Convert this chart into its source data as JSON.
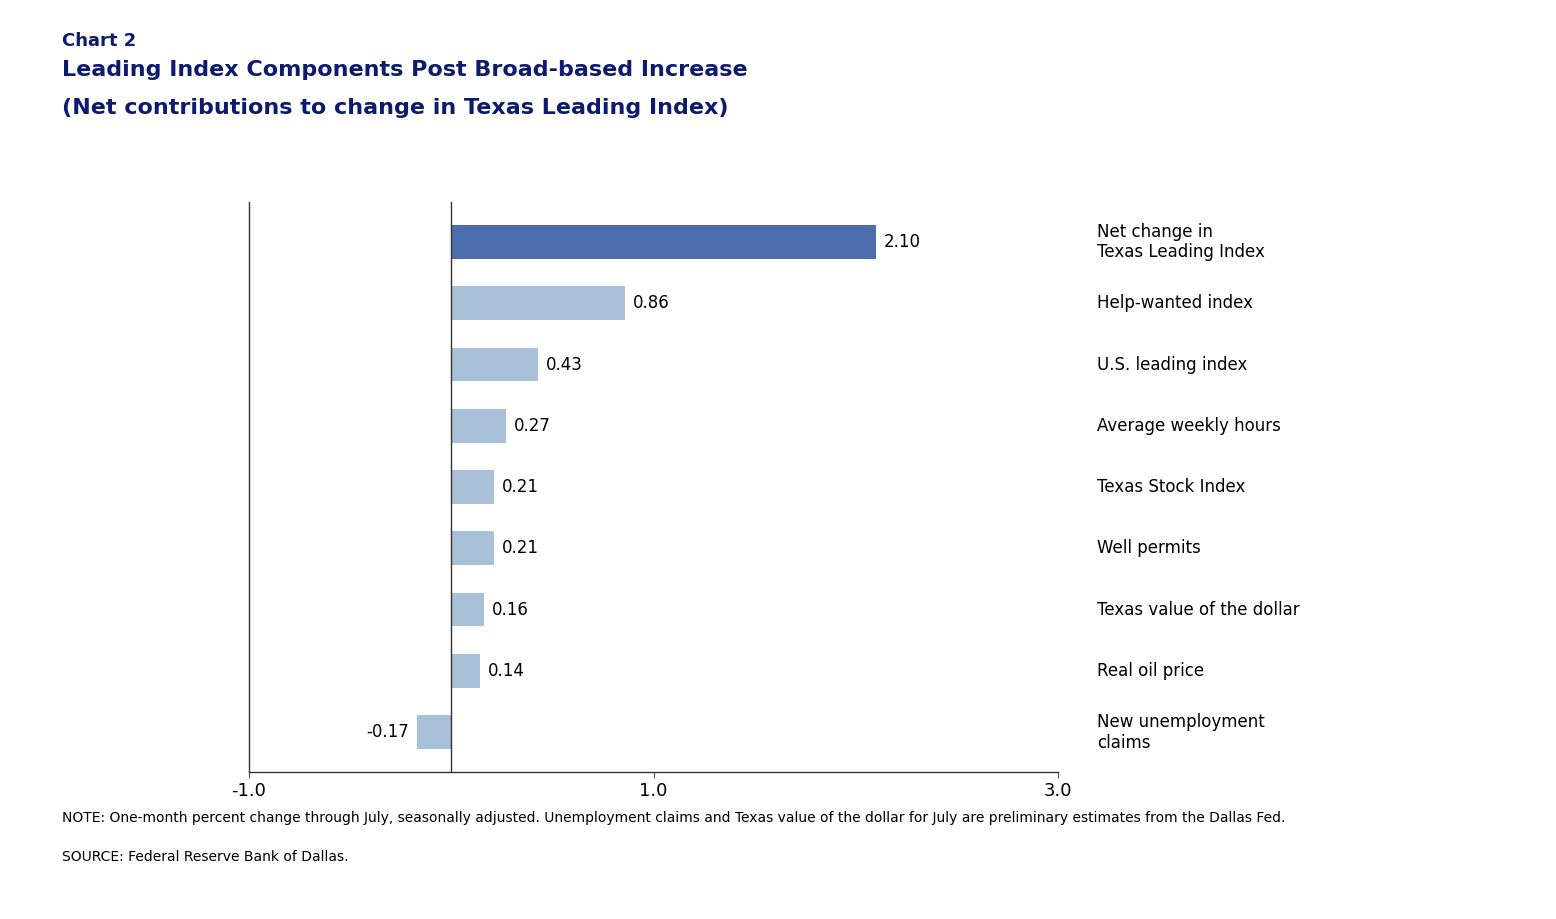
{
  "title_line1": "Chart 2",
  "title_line2": "Leading Index Components Post Broad-based Increase",
  "title_line3": "(Net contributions to change in Texas Leading Index)",
  "title_color": "#0D1B6E",
  "categories": [
    "Net change in\nTexas Leading Index",
    "Help-wanted index",
    "U.S. leading index",
    "Average weekly hours",
    "Texas Stock Index",
    "Well permits",
    "Texas value of the dollar",
    "Real oil price",
    "New unemployment\nclaims"
  ],
  "values": [
    2.1,
    0.86,
    0.43,
    0.27,
    0.21,
    0.21,
    0.16,
    0.14,
    -0.17
  ],
  "bar_colors": [
    "#4C6EAD",
    "#A8C0D8",
    "#A8C0D8",
    "#A8C0D8",
    "#A8C0D8",
    "#A8C0D8",
    "#A8C0D8",
    "#A8C0D8",
    "#A8C0D8"
  ],
  "xlim": [
    -1.0,
    3.0
  ],
  "xticks": [
    -1.0,
    1.0,
    3.0
  ],
  "note_line1": "NOTE: One-month percent change through July, seasonally adjusted. Unemployment claims and Texas value of the dollar for July are preliminary estimates from the Dallas Fed.",
  "note_line2": "SOURCE: Federal Reserve Bank of Dallas.",
  "bar_height": 0.55,
  "value_label_fontsize": 12,
  "category_label_fontsize": 12,
  "note_fontsize": 10,
  "title_fontsize_line1": 13,
  "title_fontsize_line23": 16,
  "background_color": "#FFFFFF"
}
